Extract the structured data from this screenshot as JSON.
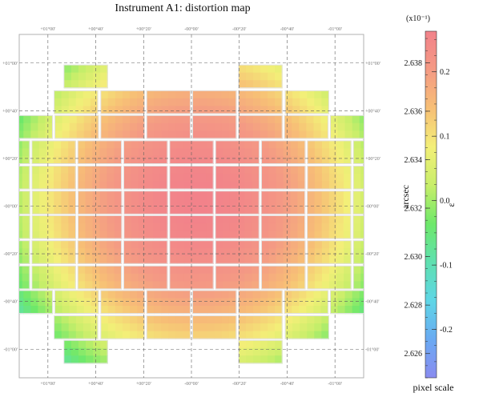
{
  "chart_data": {
    "type": "heatmap",
    "title": "Instrument A1: distortion map",
    "x_ticks": [
      "+01°00'",
      "+00°40'",
      "+00°20'",
      "-00°00'",
      "-00°20'",
      "-00°40'",
      "-01°00'"
    ],
    "y_ticks": [
      "+01°00'",
      "+00°40'",
      "+00°20'",
      "-00°00'",
      "-00°20'",
      "-00°40'",
      "-01°00'"
    ],
    "x_tick_values": [
      60,
      40,
      20,
      0,
      -20,
      -40,
      -60
    ],
    "y_tick_values": [
      60,
      40,
      20,
      0,
      -20,
      -40,
      -60
    ],
    "xlim": [
      72,
      -72
    ],
    "ylim": [
      -72,
      72
    ],
    "grid": true,
    "grid_style": "dashed",
    "colorbar": {
      "label": "pixel scale",
      "left_axis_label": "arcsec",
      "right_axis_label": "ε",
      "multiplier": "(x10⁻¹)",
      "left_ticks": [
        2.626,
        2.628,
        2.63,
        2.632,
        2.634,
        2.636,
        2.638
      ],
      "left_range": [
        2.625,
        2.6393
      ],
      "right_ticks": [
        -0.2,
        -0.1,
        0.0,
        0.1,
        0.2
      ],
      "right_ticks_text": [
        "-0.2",
        "-0.1",
        "0.0",
        "0.1",
        "0.2"
      ],
      "right_range": [
        -0.275,
        0.263
      ],
      "colors": [
        "#8a8cf0",
        "#6aaaf2",
        "#5fd6e6",
        "#5fe0b0",
        "#6ee86a",
        "#c8ee6a",
        "#f3ef78",
        "#f7bf76",
        "#f49a84",
        "#f2828a"
      ]
    },
    "detectors": {
      "rows": [
        {
          "y": 54.4,
          "x": [
            44.2,
            -28.8
          ]
        },
        {
          "y": 43.6,
          "x": [
            48.3,
            28.8,
            9.6,
            -9.6,
            -28.8,
            -48.3
          ]
        },
        {
          "y": 33.2,
          "x": [
            67.2,
            48.0,
            28.8,
            9.6,
            -9.6,
            -28.8,
            -48.0,
            -67.2
          ]
        },
        {
          "y": 22.6,
          "x": [
            76.8,
            57.6,
            38.4,
            19.2,
            0.0,
            -19.2,
            -38.4,
            -57.6,
            -76.8
          ]
        },
        {
          "y": 12.0,
          "x": [
            76.8,
            57.6,
            38.4,
            19.2,
            0.0,
            -19.2,
            -38.4,
            -57.6,
            -76.8
          ]
        },
        {
          "y": 1.5,
          "x": [
            95.9,
            76.7,
            57.5,
            38.3,
            19.1,
            0.0,
            -19.1,
            -38.3,
            -57.5,
            -76.7,
            -95.9
          ]
        },
        {
          "y": -8.8,
          "x": [
            95.9,
            76.7,
            57.5,
            38.3,
            19.1,
            0.0,
            -19.1,
            -38.3,
            -57.5,
            -76.7,
            -95.9
          ]
        },
        {
          "y": -19.3,
          "x": [
            76.8,
            57.6,
            38.4,
            19.2,
            0.0,
            -19.2,
            -38.4,
            -57.6,
            -76.8
          ]
        },
        {
          "y": -29.9,
          "x": [
            76.8,
            57.6,
            38.4,
            19.2,
            0.0,
            -19.2,
            -38.4,
            -57.6,
            -76.8
          ]
        },
        {
          "y": -40.2,
          "x": [
            67.2,
            48.0,
            28.8,
            9.6,
            -9.6,
            -28.8,
            -48.0,
            -67.2
          ]
        },
        {
          "y": -50.8,
          "x": [
            48.3,
            28.8,
            9.6,
            -9.6,
            -28.8,
            -48.3
          ]
        },
        {
          "y": -61.1,
          "x": [
            44.2,
            -28.8
          ]
        }
      ],
      "distortion_model": {
        "peak": 0.263,
        "center": [
          -2.0,
          2.0
        ],
        "coeff": 0.045
      }
    }
  }
}
